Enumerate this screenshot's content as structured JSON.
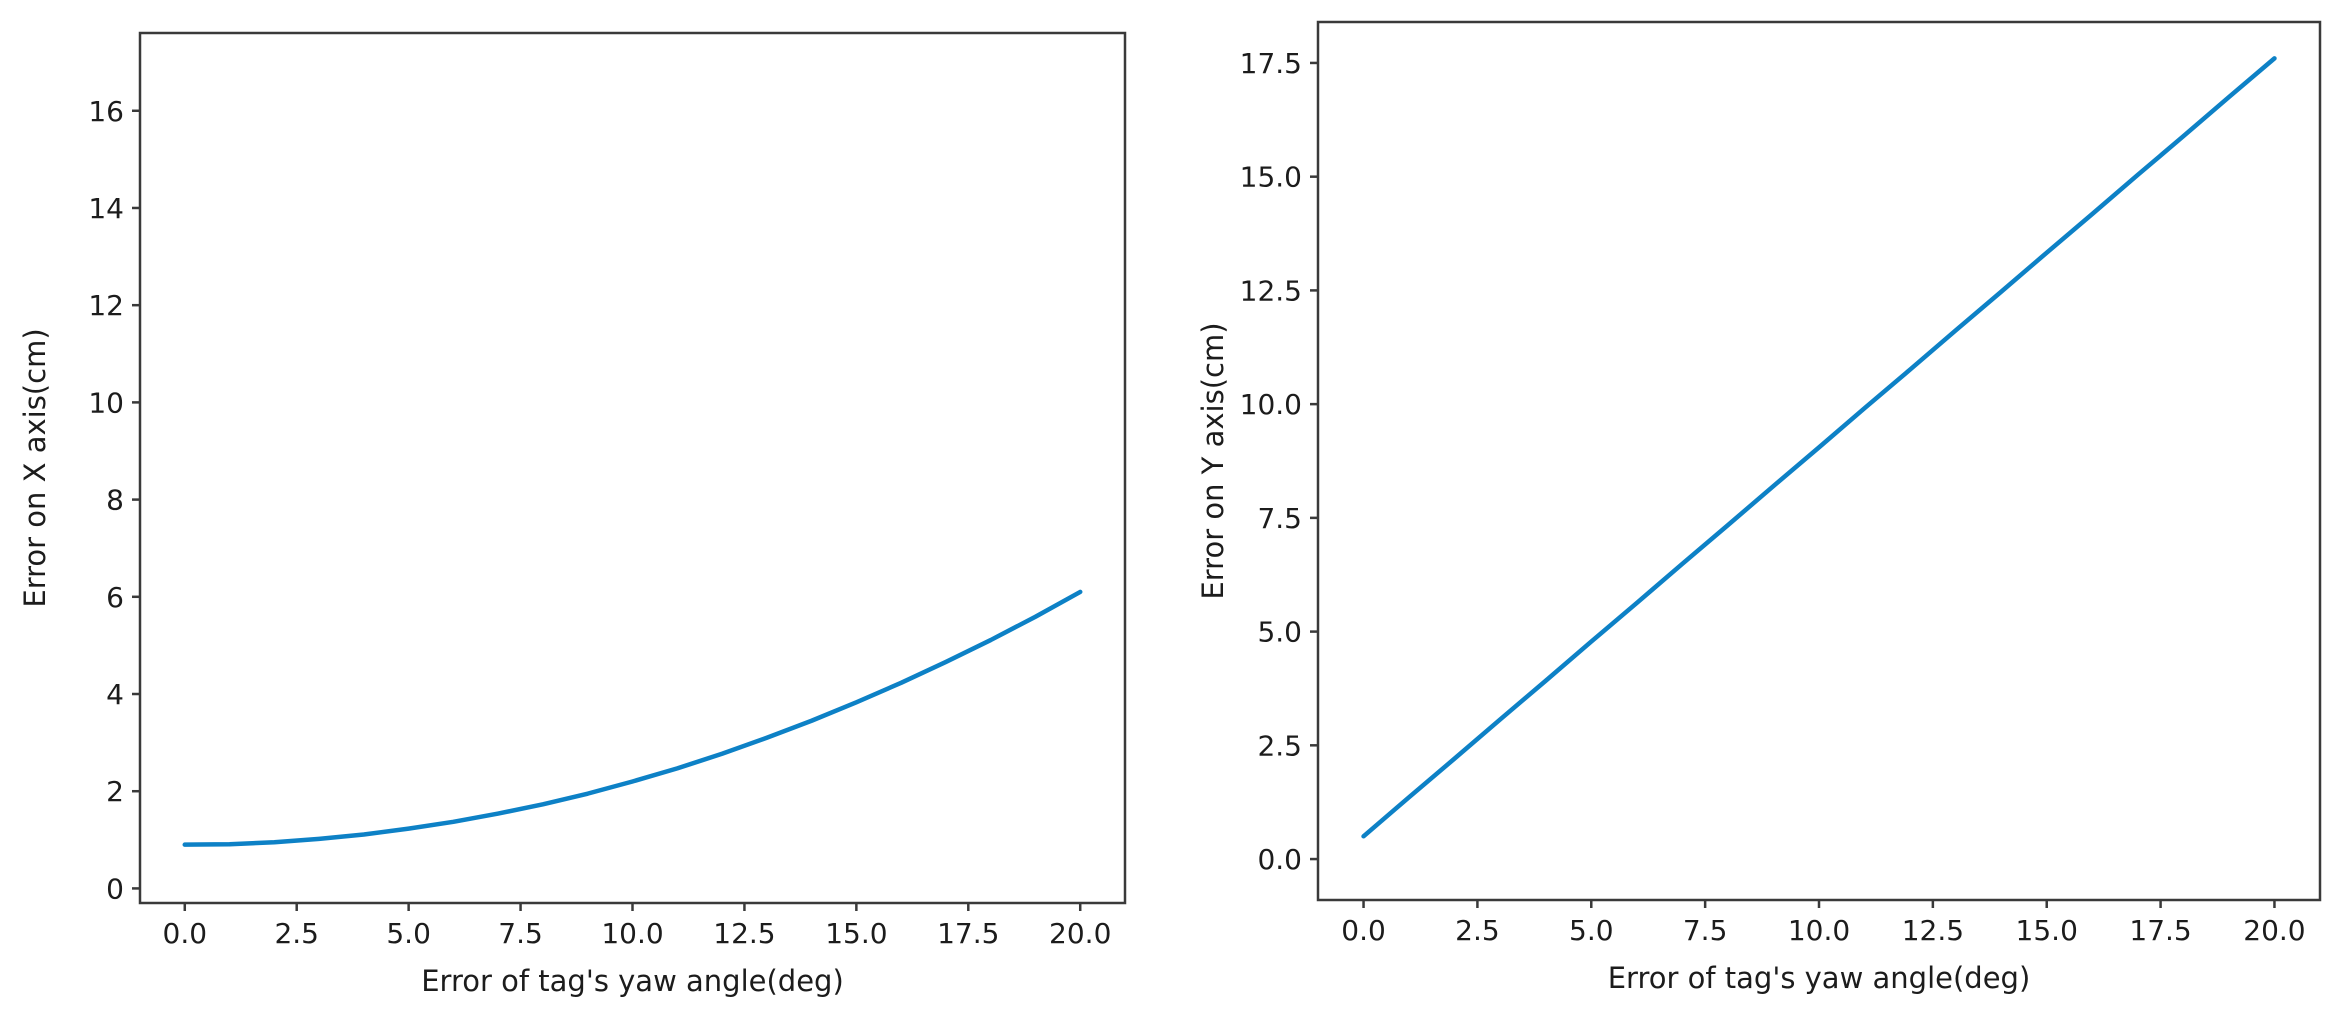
{
  "figure": {
    "background": "#ffffff"
  },
  "chart_data": [
    {
      "id": "error-x-chart",
      "type": "line",
      "title": "",
      "xlabel": "Error of tag's yaw angle(deg)",
      "ylabel": "Error on X axis(cm)",
      "xtick_labels": [
        "0.0",
        "2.5",
        "5.0",
        "7.5",
        "10.0",
        "12.5",
        "15.0",
        "17.5",
        "20.0"
      ],
      "xtick_values": [
        0,
        2.5,
        5,
        7.5,
        10,
        12.5,
        15,
        17.5,
        20
      ],
      "ytick_labels": [
        "0",
        "2",
        "4",
        "6",
        "8",
        "10",
        "12",
        "14",
        "16"
      ],
      "ytick_values": [
        0,
        2,
        4,
        6,
        8,
        10,
        12,
        14,
        16
      ],
      "xlim": [
        -1,
        21
      ],
      "ylim": [
        -0.3,
        17.6
      ],
      "grid": false,
      "legend": "none",
      "line_color": "#0d81c6",
      "x": [
        0,
        1,
        2,
        3,
        4,
        5,
        6,
        7,
        8,
        9,
        10,
        11,
        12,
        13,
        14,
        15,
        16,
        17,
        18,
        19,
        20
      ],
      "y": [
        0.9,
        0.91,
        0.95,
        1.02,
        1.11,
        1.23,
        1.37,
        1.54,
        1.73,
        1.95,
        2.2,
        2.47,
        2.77,
        3.1,
        3.45,
        3.83,
        4.23,
        4.66,
        5.11,
        5.59,
        6.1
      ]
    },
    {
      "id": "error-y-chart",
      "type": "line",
      "title": "",
      "xlabel": "Error of tag's yaw angle(deg)",
      "ylabel": "Error on Y axis(cm)",
      "xtick_labels": [
        "0.0",
        "2.5",
        "5.0",
        "7.5",
        "10.0",
        "12.5",
        "15.0",
        "17.5",
        "20.0"
      ],
      "xtick_values": [
        0,
        2.5,
        5,
        7.5,
        10,
        12.5,
        15,
        17.5,
        20
      ],
      "ytick_labels": [
        "0.0",
        "2.5",
        "5.0",
        "7.5",
        "10.0",
        "12.5",
        "15.0",
        "17.5"
      ],
      "ytick_values": [
        0,
        2.5,
        5,
        7.5,
        10,
        12.5,
        15,
        17.5
      ],
      "xlim": [
        -1,
        21
      ],
      "ylim": [
        -0.9,
        18.4
      ],
      "grid": false,
      "legend": "none",
      "line_color": "#0d81c6",
      "x": [
        0,
        1,
        2,
        3,
        4,
        5,
        6,
        7,
        8,
        9,
        10,
        11,
        12,
        13,
        14,
        15,
        16,
        17,
        18,
        19,
        20
      ],
      "y": [
        0.5,
        1.36,
        2.21,
        3.07,
        3.92,
        4.78,
        5.63,
        6.49,
        7.34,
        8.2,
        9.05,
        9.91,
        10.76,
        11.62,
        12.47,
        13.33,
        14.18,
        15.04,
        15.89,
        16.75,
        17.6
      ]
    }
  ]
}
